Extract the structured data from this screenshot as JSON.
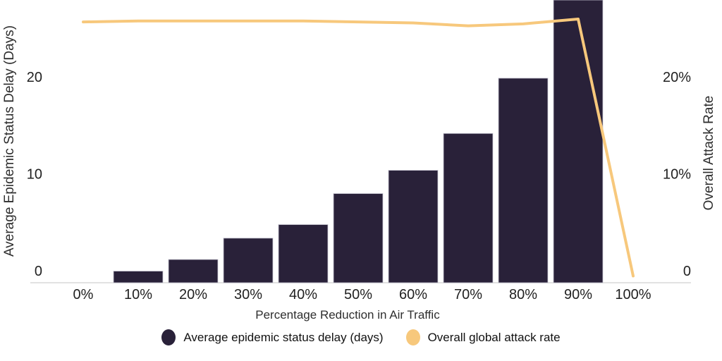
{
  "colors": {
    "bar": "#292139",
    "line": "#f7c87c",
    "axis_line": "#e2e2e2",
    "bar_outline": "#cbc9d6",
    "text": "#212121"
  },
  "chart_data": {
    "type": "bar",
    "subtype": "combo-bar-line-dual-axis",
    "title": "",
    "xlabel": "Percentage Reduction in Air Traffic",
    "ylabel_left": "Average Epidemic Status Delay (Days)",
    "ylabel_right": "Overall Attack Rate",
    "categories": [
      "0%",
      "10%",
      "20%",
      "30%",
      "40%",
      "50%",
      "60%",
      "70%",
      "80%",
      "90%",
      "100%"
    ],
    "series": [
      {
        "name": "Average epidemic status delay (days)",
        "type": "bar",
        "axis": "left",
        "color": "#292139",
        "values": [
          0,
          1.2,
          2.4,
          4.6,
          6.0,
          9.2,
          11.6,
          15.4,
          21.1,
          30,
          null
        ]
      },
      {
        "name": "Overall global attack rate",
        "type": "line",
        "axis": "right",
        "color": "#f7c87c",
        "values": [
          26.9,
          27.0,
          27.0,
          27.0,
          27.0,
          26.9,
          26.8,
          26.5,
          26.7,
          27.2,
          0.7
        ]
      }
    ],
    "yticks_left": {
      "values": [
        0,
        10,
        20
      ],
      "labels": [
        "0",
        "10",
        "20"
      ]
    },
    "yticks_right": {
      "values": [
        0,
        10,
        20
      ],
      "labels": [
        "0",
        "10%",
        "20%"
      ]
    },
    "ylim_left": [
      0,
      29.2
    ],
    "ylim_right_percent": [
      0,
      29.2
    ],
    "grid": false,
    "legend_position": "bottom",
    "note": "bar at 90% is clipped by the top edge of the plot"
  },
  "legend": {
    "items": [
      {
        "label": "Average epidemic status delay (days)"
      },
      {
        "label": "Overall global attack rate"
      }
    ]
  }
}
